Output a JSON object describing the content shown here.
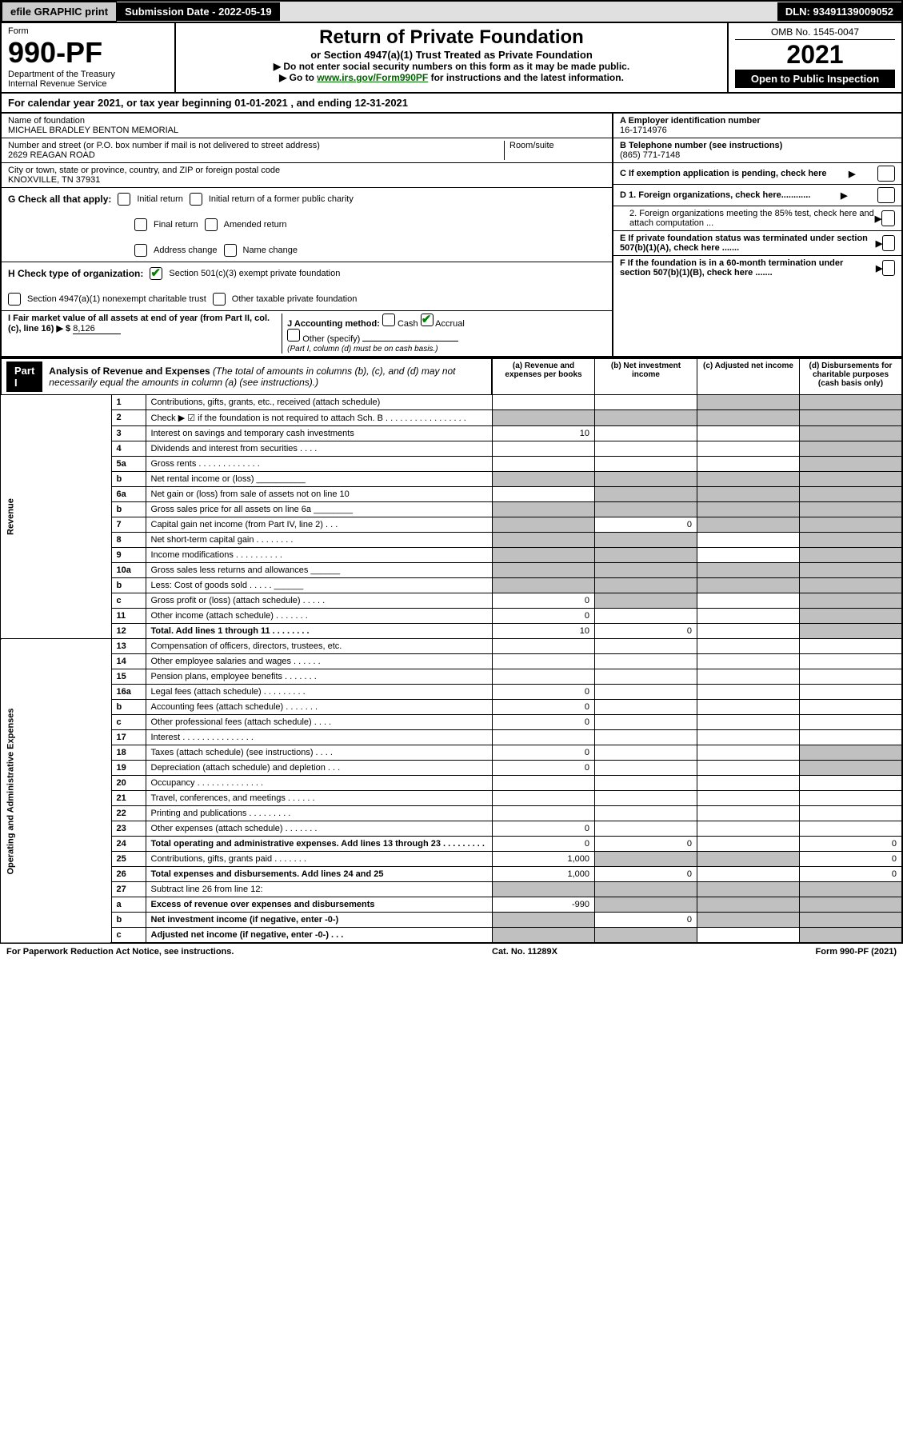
{
  "topbar": {
    "efile": "efile GRAPHIC print",
    "submission": "Submission Date - 2022-05-19",
    "dln": "DLN: 93491139009052"
  },
  "header": {
    "form_label": "Form",
    "form_number": "990-PF",
    "dept1": "Department of the Treasury",
    "dept2": "Internal Revenue Service",
    "title": "Return of Private Foundation",
    "subtitle": "or Section 4947(a)(1) Trust Treated as Private Foundation",
    "instr1": "▶ Do not enter social security numbers on this form as it may be made public.",
    "instr2_pre": "▶ Go to ",
    "instr2_link": "www.irs.gov/Form990PF",
    "instr2_post": " for instructions and the latest information.",
    "omb": "OMB No. 1545-0047",
    "year": "2021",
    "open": "Open to Public Inspection"
  },
  "calyear": {
    "pre": "For calendar year 2021, or tax year beginning ",
    "begin": "01-01-2021",
    "mid": " , and ending ",
    "end": "12-31-2021"
  },
  "name": {
    "label": "Name of foundation",
    "value": "MICHAEL BRADLEY BENTON MEMORIAL"
  },
  "address": {
    "label": "Number and street (or P.O. box number if mail is not delivered to street address)",
    "room_label": "Room/suite",
    "value": "2629 REAGAN ROAD"
  },
  "city": {
    "label": "City or town, state or province, country, and ZIP or foreign postal code",
    "value": "KNOXVILLE, TN  37931"
  },
  "ein": {
    "label": "A Employer identification number",
    "value": "16-1714976"
  },
  "phone": {
    "label": "B Telephone number (see instructions)",
    "value": "(865) 771-7148"
  },
  "boxC": "C If exemption application is pending, check here",
  "boxD1": "D 1. Foreign organizations, check here............",
  "boxD2": "2. Foreign organizations meeting the 85% test, check here and attach computation ...",
  "boxE": "E If private foundation status was terminated under section 507(b)(1)(A), check here .......",
  "boxF": "F If the foundation is in a 60-month termination under section 507(b)(1)(B), check here .......",
  "G": {
    "label": "G Check all that apply:",
    "opts": [
      "Initial return",
      "Initial return of a former public charity",
      "Final return",
      "Amended return",
      "Address change",
      "Name change"
    ]
  },
  "H": {
    "label": "H Check type of organization:",
    "opt1": "Section 501(c)(3) exempt private foundation",
    "opt2": "Section 4947(a)(1) nonexempt charitable trust",
    "opt3": "Other taxable private foundation"
  },
  "I": {
    "label": "I Fair market value of all assets at end of year (from Part II, col. (c), line 16) ▶ $ ",
    "value": "8,126"
  },
  "J": {
    "label": "J Accounting method:",
    "cash": "Cash",
    "accrual": "Accrual",
    "other": "Other (specify)",
    "note": "(Part I, column (d) must be on cash basis.)"
  },
  "part1": {
    "label": "Part I",
    "title": "Analysis of Revenue and Expenses",
    "subtitle": " (The total of amounts in columns (b), (c), and (d) may not necessarily equal the amounts in column (a) (see instructions).)",
    "cols": {
      "a": "(a) Revenue and expenses per books",
      "b": "(b) Net investment income",
      "c": "(c) Adjusted net income",
      "d": "(d) Disbursements for charitable purposes (cash basis only)"
    }
  },
  "side": {
    "revenue": "Revenue",
    "expenses": "Operating and Administrative Expenses"
  },
  "rows": [
    {
      "n": "1",
      "t": "Contributions, gifts, grants, etc., received (attach schedule)",
      "a": "",
      "b": "",
      "c_shade": true,
      "d_shade": true
    },
    {
      "n": "2",
      "t": "Check ▶ ☑ if the foundation is not required to attach Sch. B  . . . . . . . . . . . . . . . . .",
      "a_shade": true,
      "b_shade": true,
      "c_shade": true,
      "d_shade": true
    },
    {
      "n": "3",
      "t": "Interest on savings and temporary cash investments",
      "a": "10",
      "d_shade": true
    },
    {
      "n": "4",
      "t": "Dividends and interest from securities  . . . .",
      "d_shade": true
    },
    {
      "n": "5a",
      "t": "Gross rents  . . . . . . . . . . . . .",
      "d_shade": true
    },
    {
      "n": "b",
      "t": "Net rental income or (loss)  __________",
      "a_shade": true,
      "b_shade": true,
      "c_shade": true,
      "d_shade": true
    },
    {
      "n": "6a",
      "t": "Net gain or (loss) from sale of assets not on line 10",
      "b_shade": true,
      "c_shade": true,
      "d_shade": true
    },
    {
      "n": "b",
      "t": "Gross sales price for all assets on line 6a ________",
      "a_shade": true,
      "b_shade": true,
      "c_shade": true,
      "d_shade": true
    },
    {
      "n": "7",
      "t": "Capital gain net income (from Part IV, line 2)  . . .",
      "a_shade": true,
      "b": "0",
      "c_shade": true,
      "d_shade": true
    },
    {
      "n": "8",
      "t": "Net short-term capital gain  . . . . . . . .",
      "a_shade": true,
      "b_shade": true,
      "d_shade": true
    },
    {
      "n": "9",
      "t": "Income modifications  . . . . . . . . . .",
      "a_shade": true,
      "b_shade": true,
      "d_shade": true
    },
    {
      "n": "10a",
      "t": "Gross sales less returns and allowances  ______",
      "a_shade": true,
      "b_shade": true,
      "c_shade": true,
      "d_shade": true
    },
    {
      "n": "b",
      "t": "Less: Cost of goods sold  . . . . .  ______",
      "a_shade": true,
      "b_shade": true,
      "c_shade": true,
      "d_shade": true
    },
    {
      "n": "c",
      "t": "Gross profit or (loss) (attach schedule)  . . . . .",
      "a": "0",
      "b_shade": true,
      "d_shade": true
    },
    {
      "n": "11",
      "t": "Other income (attach schedule)  . . . . . . .",
      "a": "0",
      "d_shade": true
    },
    {
      "n": "12",
      "t": "Total. Add lines 1 through 11  . . . . . . . .",
      "bold": true,
      "a": "10",
      "b": "0",
      "d_shade": true
    }
  ],
  "exp_rows": [
    {
      "n": "13",
      "t": "Compensation of officers, directors, trustees, etc."
    },
    {
      "n": "14",
      "t": "Other employee salaries and wages  . . . . . ."
    },
    {
      "n": "15",
      "t": "Pension plans, employee benefits  . . . . . . ."
    },
    {
      "n": "16a",
      "t": "Legal fees (attach schedule)  . . . . . . . . .",
      "a": "0"
    },
    {
      "n": "b",
      "t": "Accounting fees (attach schedule)  . . . . . . .",
      "a": "0"
    },
    {
      "n": "c",
      "t": "Other professional fees (attach schedule)  . . . .",
      "a": "0"
    },
    {
      "n": "17",
      "t": "Interest  . . . . . . . . . . . . . . ."
    },
    {
      "n": "18",
      "t": "Taxes (attach schedule) (see instructions)  . . . .",
      "a": "0",
      "d_shade": true
    },
    {
      "n": "19",
      "t": "Depreciation (attach schedule) and depletion  . . .",
      "a": "0",
      "d_shade": true
    },
    {
      "n": "20",
      "t": "Occupancy  . . . . . . . . . . . . . ."
    },
    {
      "n": "21",
      "t": "Travel, conferences, and meetings  . . . . . ."
    },
    {
      "n": "22",
      "t": "Printing and publications  . . . . . . . . ."
    },
    {
      "n": "23",
      "t": "Other expenses (attach schedule)  . . . . . . .",
      "a": "0"
    },
    {
      "n": "24",
      "t": "Total operating and administrative expenses. Add lines 13 through 23  . . . . . . . . .",
      "bold": true,
      "a": "0",
      "b": "0",
      "d": "0"
    },
    {
      "n": "25",
      "t": "Contributions, gifts, grants paid  . . . . . . .",
      "a": "1,000",
      "b_shade": true,
      "c_shade": true,
      "d": "0"
    },
    {
      "n": "26",
      "t": "Total expenses and disbursements. Add lines 24 and 25",
      "bold": true,
      "a": "1,000",
      "b": "0",
      "d": "0"
    },
    {
      "n": "27",
      "t": "Subtract line 26 from line 12:",
      "a_shade": true,
      "b_shade": true,
      "c_shade": true,
      "d_shade": true
    },
    {
      "n": "a",
      "t": "Excess of revenue over expenses and disbursements",
      "bold": true,
      "a": "-990",
      "b_shade": true,
      "c_shade": true,
      "d_shade": true
    },
    {
      "n": "b",
      "t": "Net investment income (if negative, enter -0-)",
      "bold": true,
      "a_shade": true,
      "b": "0",
      "c_shade": true,
      "d_shade": true
    },
    {
      "n": "c",
      "t": "Adjusted net income (if negative, enter -0-)  . . .",
      "bold": true,
      "a_shade": true,
      "b_shade": true,
      "d_shade": true
    }
  ],
  "footer": {
    "left": "For Paperwork Reduction Act Notice, see instructions.",
    "mid": "Cat. No. 11289X",
    "right": "Form 990-PF (2021)"
  }
}
